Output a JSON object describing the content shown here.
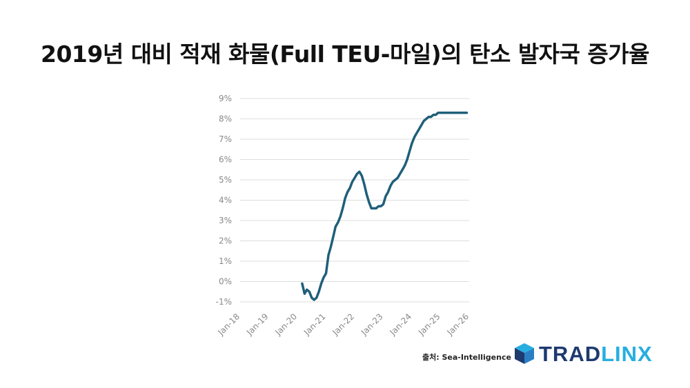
{
  "title": "2019년 대비 적재 화물(Full TEU-마일)의 탄소 발자국 증가율",
  "source": "출처: Sea-Intelligence",
  "logo": {
    "part1": "TRAD",
    "part2": "LINX",
    "colors": {
      "primary": "#1e3a6e",
      "accent": "#27aee0"
    }
  },
  "colors": {
    "line": "#1f5f7a",
    "grid": "#dddddd",
    "tick_text": "#888888"
  },
  "chart_data": {
    "type": "line",
    "title": "",
    "xlabel": "",
    "ylabel": "",
    "ylim": [
      -1,
      9
    ],
    "y_ticks": [
      -1,
      0,
      1,
      2,
      3,
      4,
      5,
      6,
      7,
      8,
      9
    ],
    "y_tick_labels": [
      "-1%",
      "0%",
      "1%",
      "2%",
      "3%",
      "4%",
      "5%",
      "6%",
      "7%",
      "8%",
      "9%"
    ],
    "x_ticks": [
      "2018-01",
      "2019-01",
      "2020-01",
      "2021-01",
      "2022-01",
      "2023-01",
      "2024-01",
      "2025-01",
      "2026-01"
    ],
    "x_tick_labels": [
      "Jan-18",
      "Jan-19",
      "Jan-20",
      "Jan-21",
      "Jan-22",
      "Jan-23",
      "Jan-24",
      "Jan-25",
      "Jan-26"
    ],
    "grid": true,
    "series": [
      {
        "x": [
          "2020-03",
          "2020-04",
          "2020-05",
          "2020-06",
          "2020-07",
          "2020-08",
          "2020-09",
          "2020-10",
          "2020-11",
          "2020-12",
          "2021-01",
          "2021-02",
          "2021-03",
          "2021-04",
          "2021-05",
          "2021-06",
          "2021-07",
          "2021-08",
          "2021-09",
          "2021-10",
          "2021-11",
          "2021-12",
          "2022-01",
          "2022-02",
          "2022-03",
          "2022-04",
          "2022-05",
          "2022-06",
          "2022-07",
          "2022-08",
          "2022-09",
          "2022-10",
          "2022-11",
          "2022-12",
          "2023-01",
          "2023-02",
          "2023-03",
          "2023-04",
          "2023-05",
          "2023-06",
          "2023-07",
          "2023-08",
          "2023-09",
          "2023-10",
          "2023-11",
          "2023-12",
          "2024-01",
          "2024-02",
          "2024-03",
          "2024-04",
          "2024-05",
          "2024-06",
          "2024-07",
          "2024-08",
          "2024-09",
          "2024-10",
          "2024-11",
          "2024-12",
          "2025-01",
          "2025-02",
          "2025-03",
          "2025-04",
          "2025-05",
          "2025-06",
          "2025-07",
          "2025-08",
          "2025-09",
          "2025-10",
          "2025-11",
          "2025-12"
        ],
        "values": [
          -0.1,
          -0.6,
          -0.4,
          -0.5,
          -0.8,
          -0.9,
          -0.8,
          -0.5,
          -0.1,
          0.2,
          0.4,
          1.3,
          1.7,
          2.2,
          2.7,
          2.9,
          3.2,
          3.6,
          4.1,
          4.4,
          4.6,
          4.9,
          5.1,
          5.3,
          5.4,
          5.2,
          4.8,
          4.3,
          3.9,
          3.6,
          3.6,
          3.6,
          3.7,
          3.7,
          3.8,
          4.2,
          4.4,
          4.7,
          4.9,
          5.0,
          5.1,
          5.3,
          5.5,
          5.7,
          6.0,
          6.4,
          6.8,
          7.1,
          7.3,
          7.5,
          7.7,
          7.9,
          8.0,
          8.1,
          8.1,
          8.2,
          8.2,
          8.3,
          8.3,
          8.3,
          8.3,
          8.3,
          8.3,
          8.3,
          8.3,
          8.3,
          8.3,
          8.3,
          8.3,
          8.3
        ]
      }
    ]
  }
}
